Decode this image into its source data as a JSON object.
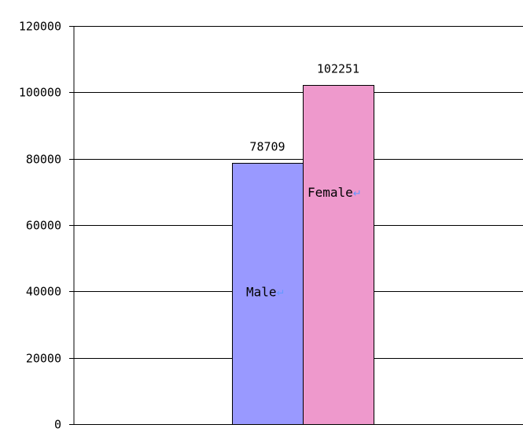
{
  "chart_data": {
    "type": "bar",
    "categories": [
      "Male",
      "Female"
    ],
    "values": [
      78709,
      102251
    ],
    "value_labels": [
      "78709",
      "102251"
    ],
    "colors": [
      "#9999ff",
      "#ee99cc"
    ],
    "ylim": [
      0,
      120000
    ],
    "y_ticks": [
      0,
      20000,
      40000,
      60000,
      80000,
      100000,
      120000
    ],
    "y_tick_labels": [
      "0",
      "20000",
      "40000",
      "60000",
      "80000",
      "100000",
      "120000"
    ],
    "grid": true,
    "return_mark": "↵",
    "return_mark_color": "#6699ff"
  }
}
